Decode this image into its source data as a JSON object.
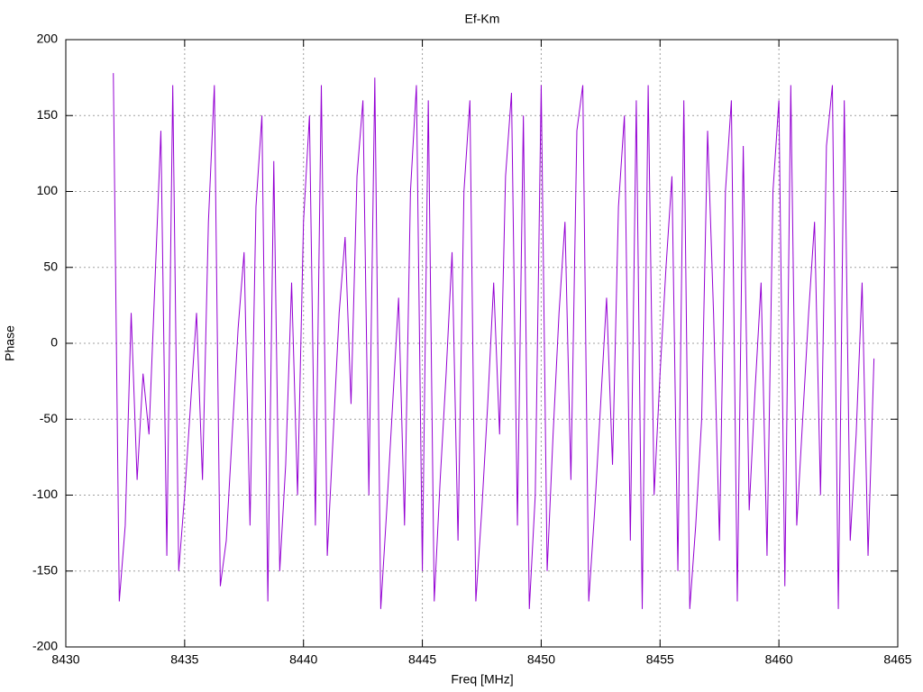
{
  "chart_data": {
    "type": "line",
    "title": "Ef-Km",
    "x_label": "Freq [MHz]",
    "y_label": "Phase",
    "xlim": [
      8430,
      8465
    ],
    "xticks": [
      8430,
      8435,
      8440,
      8445,
      8450,
      8455,
      8460,
      8465
    ],
    "ylim": [
      -200,
      200
    ],
    "yticks": [
      -200,
      -150,
      -100,
      -50,
      0,
      50,
      100,
      150,
      200
    ],
    "grid": true,
    "series": [
      {
        "name": "Ef-Km",
        "color": "#9400d3",
        "x": [
          8432.0,
          8432.25,
          8432.5,
          8432.75,
          8433.0,
          8433.25,
          8433.5,
          8433.75,
          8434.0,
          8434.25,
          8434.5,
          8434.75,
          8435.0,
          8435.25,
          8435.5,
          8435.75,
          8436.0,
          8436.25,
          8436.5,
          8436.75,
          8437.0,
          8437.25,
          8437.5,
          8437.75,
          8438.0,
          8438.25,
          8438.5,
          8438.75,
          8439.0,
          8439.25,
          8439.5,
          8439.75,
          8440.0,
          8440.25,
          8440.5,
          8440.75,
          8441.0,
          8441.25,
          8441.5,
          8441.75,
          8442.0,
          8442.25,
          8442.5,
          8442.75,
          8443.0,
          8443.25,
          8443.5,
          8443.75,
          8444.0,
          8444.25,
          8444.5,
          8444.75,
          8445.0,
          8445.25,
          8445.5,
          8445.75,
          8446.0,
          8446.25,
          8446.5,
          8446.75,
          8447.0,
          8447.25,
          8447.5,
          8447.75,
          8448.0,
          8448.25,
          8448.5,
          8448.75,
          8449.0,
          8449.25,
          8449.5,
          8449.75,
          8450.0,
          8450.25,
          8450.5,
          8450.75,
          8451.0,
          8451.25,
          8451.5,
          8451.75,
          8452.0,
          8452.25,
          8452.5,
          8452.75,
          8453.0,
          8453.25,
          8453.5,
          8453.75,
          8454.0,
          8454.25,
          8454.5,
          8454.75,
          8455.0,
          8455.25,
          8455.5,
          8455.75,
          8456.0,
          8456.25,
          8456.5,
          8456.75,
          8457.0,
          8457.25,
          8457.5,
          8457.75,
          8458.0,
          8458.25,
          8458.5,
          8458.75,
          8459.0,
          8459.25,
          8459.5,
          8459.75,
          8460.0,
          8460.25,
          8460.5,
          8460.75,
          8461.0,
          8461.25,
          8461.5,
          8461.75,
          8462.0,
          8462.25,
          8462.5,
          8462.75,
          8463.0,
          8463.25,
          8463.5,
          8463.75,
          8464.0
        ],
        "values": [
          178,
          -170,
          -120,
          20,
          -90,
          -20,
          -60,
          40,
          140,
          -140,
          170,
          -150,
          -100,
          -40,
          20,
          -90,
          80,
          170,
          -160,
          -130,
          -60,
          10,
          60,
          -120,
          90,
          150,
          -170,
          120,
          -150,
          -80,
          40,
          -100,
          80,
          150,
          -120,
          170,
          -140,
          -60,
          20,
          70,
          -40,
          110,
          160,
          -100,
          175,
          -175,
          -110,
          -40,
          30,
          -120,
          100,
          170,
          -150,
          160,
          -170,
          -90,
          -20,
          60,
          -130,
          100,
          160,
          -170,
          -110,
          -40,
          40,
          -60,
          110,
          165,
          -120,
          150,
          -175,
          -100,
          170,
          -150,
          -60,
          20,
          80,
          -90,
          140,
          170,
          -170,
          -110,
          -40,
          30,
          -80,
          90,
          150,
          -130,
          160,
          -175,
          170,
          -100,
          -20,
          50,
          110,
          -150,
          160,
          -175,
          -120,
          -50,
          140,
          20,
          -130,
          100,
          160,
          -170,
          130,
          -110,
          -30,
          40,
          -140,
          100,
          160,
          -160,
          170,
          -120,
          -50,
          20,
          80,
          -100,
          130,
          170,
          -175,
          160,
          -130,
          -60,
          40,
          -140,
          -10
        ]
      }
    ]
  }
}
